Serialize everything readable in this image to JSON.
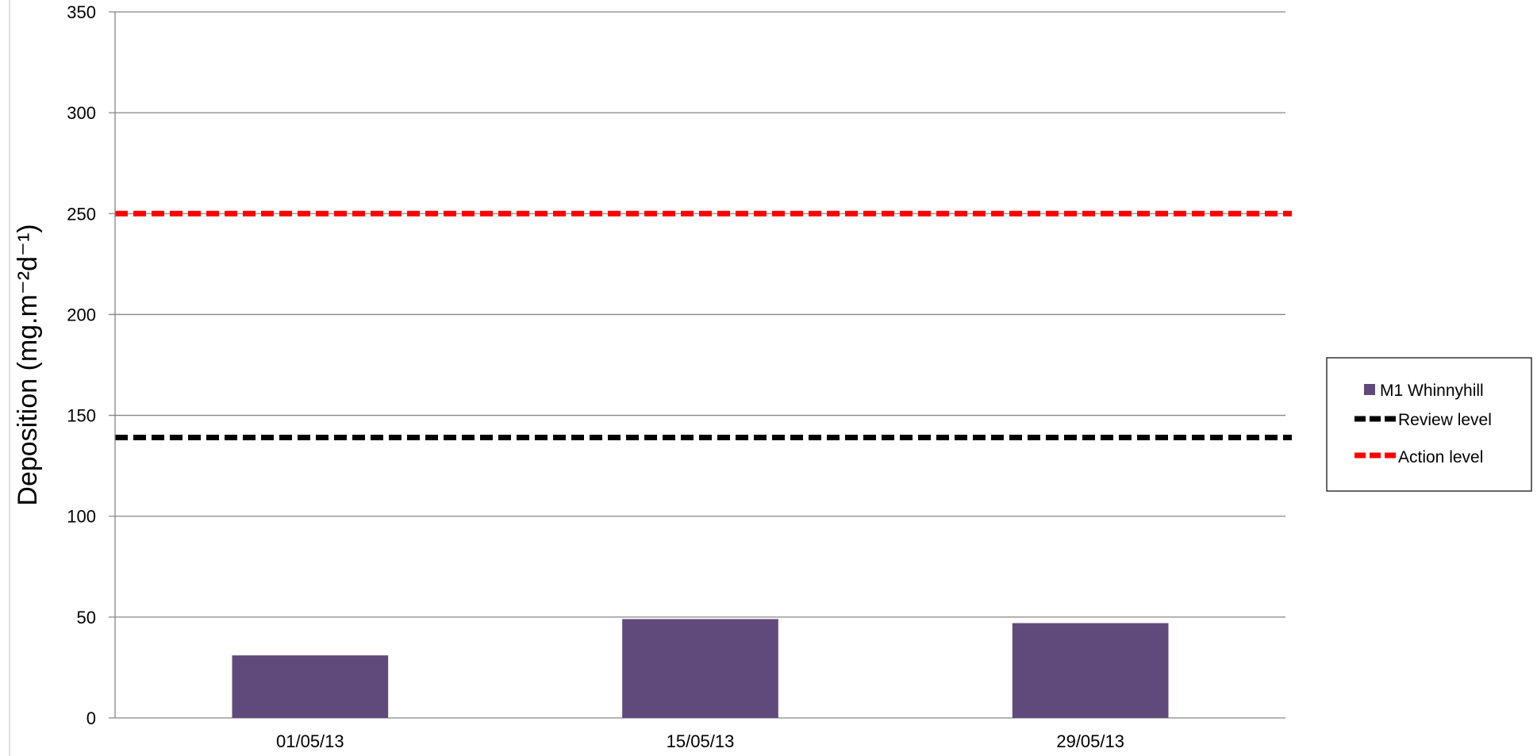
{
  "chart_data": {
    "type": "bar",
    "categories": [
      "01/05/13",
      "15/05/13",
      "29/05/13"
    ],
    "series": [
      {
        "name": "M1 Whinnyhill",
        "type": "bar",
        "values": [
          31,
          49,
          47
        ],
        "color": "#604A7B"
      },
      {
        "name": "Review level",
        "type": "line",
        "values": [
          139,
          139,
          139
        ],
        "color": "#000000",
        "style": "dashed"
      },
      {
        "name": "Action level",
        "type": "line",
        "values": [
          250,
          250,
          250
        ],
        "color": "#FF0000",
        "style": "dashed"
      }
    ],
    "ylabel": "Deposition (mg.m⁻²d⁻¹)",
    "ylim": [
      0,
      350
    ],
    "yticks": [
      "0",
      "50",
      "100",
      "150",
      "200",
      "250",
      "300",
      "350"
    ],
    "grid": true,
    "legend_position": "right"
  }
}
